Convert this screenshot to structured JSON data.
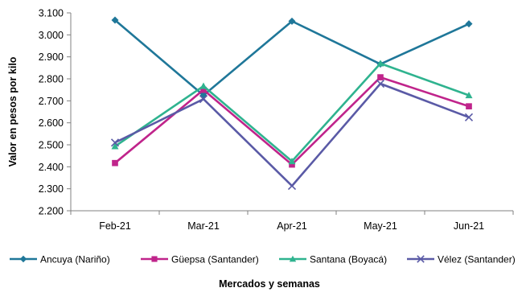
{
  "chart_data": {
    "type": "line",
    "title": "",
    "xlabel": "Mercados y semanas",
    "ylabel": "Valor en pesos  por kilo",
    "categories": [
      "Feb-21",
      "Mar-21",
      "Apr-21",
      "May-21",
      "Jun-21"
    ],
    "ylim": [
      2200,
      3100
    ],
    "yticks": [
      2200,
      2300,
      2400,
      2500,
      2600,
      2700,
      2800,
      2900,
      3000,
      3100
    ],
    "ytick_labels": [
      "2.200",
      "2.300",
      "2.400",
      "2.500",
      "2.600",
      "2.700",
      "2.800",
      "2.900",
      "3.000",
      "3.100"
    ],
    "grid": false,
    "legend_position": "bottom",
    "series": [
      {
        "name": "Ancuya (Nariño)",
        "values": [
          3067,
          2725,
          3062,
          2867,
          3050
        ],
        "color": "#1f7799",
        "marker": "diamond"
      },
      {
        "name": "Güepsa (Santander)",
        "values": [
          2417,
          2750,
          2410,
          2807,
          2675
        ],
        "color": "#c0248b",
        "marker": "square"
      },
      {
        "name": "Santana (Boyacá)",
        "values": [
          2493,
          2767,
          2425,
          2870,
          2725
        ],
        "color": "#2fb38f",
        "marker": "triangle"
      },
      {
        "name": "Vélez (Santander)",
        "values": [
          2510,
          2708,
          2313,
          2778,
          2625
        ],
        "color": "#5a5aa6",
        "marker": "x"
      }
    ]
  }
}
